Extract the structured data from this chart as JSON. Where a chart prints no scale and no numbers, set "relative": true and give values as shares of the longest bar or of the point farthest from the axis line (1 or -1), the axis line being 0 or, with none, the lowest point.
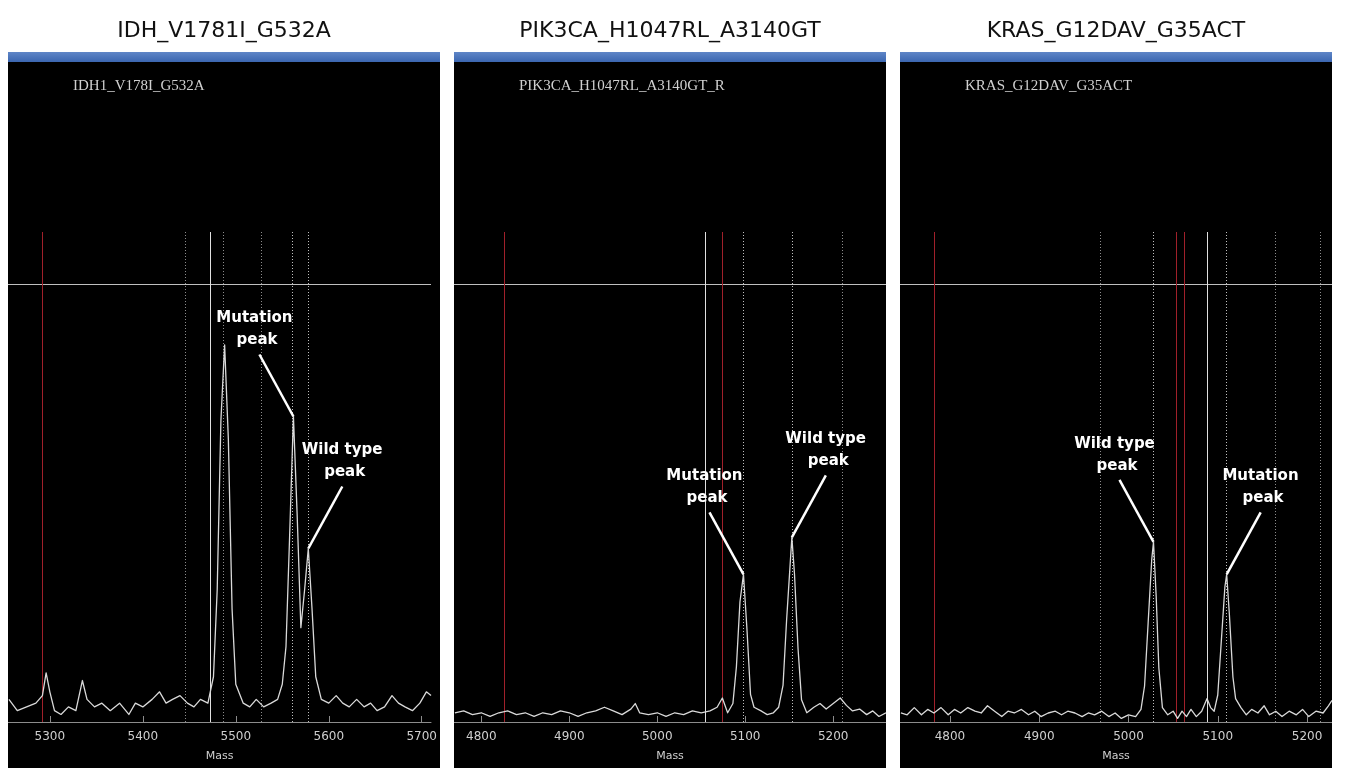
{
  "chart_data": [
    {
      "type": "line",
      "title": "IDH_V1781I_G532A",
      "subtitle": "IDH1_V178I_G532A",
      "xlabel": "Mass",
      "relative": true,
      "marker": "none",
      "xlim": [
        5255,
        5710
      ],
      "xticks": [
        5300,
        5400,
        5500,
        5600,
        5700
      ],
      "series": [
        {
          "color": "#d9d9d9",
          "x": [
            5256,
            5265,
            5275,
            5285,
            5292,
            5296,
            5300,
            5305,
            5312,
            5320,
            5328,
            5335,
            5340,
            5348,
            5356,
            5365,
            5375,
            5385,
            5392,
            5400,
            5410,
            5418,
            5425,
            5432,
            5440,
            5448,
            5455,
            5462,
            5470,
            5476,
            5480,
            5484,
            5488,
            5492,
            5496,
            5500,
            5508,
            5515,
            5522,
            5530,
            5538,
            5545,
            5550,
            5554,
            5558,
            5562,
            5566,
            5570,
            5574,
            5578,
            5582,
            5586,
            5592,
            5600,
            5608,
            5615,
            5622,
            5630,
            5638,
            5645,
            5652,
            5660,
            5668,
            5675,
            5682,
            5690,
            5698,
            5705,
            5710
          ],
          "values": [
            0.06,
            0.03,
            0.04,
            0.05,
            0.07,
            0.13,
            0.08,
            0.03,
            0.02,
            0.04,
            0.03,
            0.11,
            0.06,
            0.04,
            0.05,
            0.03,
            0.05,
            0.02,
            0.05,
            0.04,
            0.06,
            0.08,
            0.05,
            0.06,
            0.07,
            0.05,
            0.04,
            0.06,
            0.05,
            0.12,
            0.35,
            0.8,
            1,
            0.75,
            0.3,
            0.1,
            0.05,
            0.04,
            0.06,
            0.04,
            0.05,
            0.06,
            0.1,
            0.2,
            0.5,
            0.81,
            0.55,
            0.25,
            0.35,
            0.46,
            0.3,
            0.12,
            0.06,
            0.05,
            0.07,
            0.05,
            0.04,
            0.06,
            0.04,
            0.05,
            0.03,
            0.04,
            0.07,
            0.05,
            0.04,
            0.03,
            0.05,
            0.08,
            0.07
          ]
        }
      ],
      "ref_lines": [
        {
          "axis": "y",
          "value": 1.16,
          "color": "#bfbfbf",
          "line_style": "solid"
        },
        {
          "axis": "x",
          "value": 5292,
          "color": "#a0202a",
          "line_style": "solid"
        },
        {
          "axis": "x",
          "value": 5446,
          "color": "#8c8c8c",
          "line_style": "dotted"
        },
        {
          "axis": "x",
          "value": 5472,
          "color": "#e0e0e0",
          "line_style": "solid"
        },
        {
          "axis": "x",
          "value": 5486,
          "color": "#8c8c8c",
          "line_style": "dotted"
        },
        {
          "axis": "x",
          "value": 5527,
          "color": "#8c8c8c",
          "line_style": "dotted"
        },
        {
          "axis": "x",
          "value": 5561,
          "color": "#bfbfbf",
          "line_style": "dotted"
        },
        {
          "axis": "x",
          "value": 5578,
          "color": "#bfbfbf",
          "line_style": "dotted"
        }
      ],
      "annotations": [
        {
          "text": "Mutation peak",
          "x": 5562,
          "y": 0.81
        },
        {
          "text": "Wild type peak",
          "x": 5578,
          "y": 0.46
        }
      ]
    },
    {
      "type": "line",
      "title": "PIK3CA_H1047RL_A3140GT",
      "subtitle": "PIK3CA_H1047RL_A3140GT_R",
      "xlabel": "Mass",
      "relative": true,
      "marker": "none",
      "xlim": [
        4769,
        5260
      ],
      "xticks": [
        4800,
        4900,
        5000,
        5100,
        5200
      ],
      "series": [
        {
          "color": "#d9d9d9",
          "x": [
            4770,
            4780,
            4790,
            4800,
            4810,
            4820,
            4830,
            4840,
            4850,
            4860,
            4870,
            4880,
            4890,
            4900,
            4910,
            4920,
            4930,
            4940,
            4950,
            4960,
            4970,
            4975,
            4980,
            4990,
            5000,
            5010,
            5020,
            5030,
            5040,
            5050,
            5060,
            5068,
            5074,
            5080,
            5086,
            5090,
            5094,
            5098,
            5102,
            5106,
            5110,
            5118,
            5125,
            5132,
            5138,
            5143,
            5147,
            5151,
            5153,
            5156,
            5160,
            5164,
            5170,
            5178,
            5185,
            5192,
            5200,
            5208,
            5215,
            5222,
            5230,
            5238,
            5245,
            5252,
            5260
          ],
          "values": [
            0.05,
            0.06,
            0.04,
            0.05,
            0.03,
            0.05,
            0.06,
            0.04,
            0.05,
            0.03,
            0.05,
            0.04,
            0.06,
            0.05,
            0.03,
            0.05,
            0.06,
            0.08,
            0.06,
            0.04,
            0.07,
            0.1,
            0.05,
            0.04,
            0.05,
            0.03,
            0.05,
            0.04,
            0.06,
            0.05,
            0.06,
            0.08,
            0.13,
            0.05,
            0.1,
            0.3,
            0.65,
            0.8,
            0.5,
            0.15,
            0.08,
            0.06,
            0.04,
            0.05,
            0.08,
            0.2,
            0.55,
            0.85,
            1,
            0.8,
            0.4,
            0.12,
            0.05,
            0.08,
            0.1,
            0.07,
            0.1,
            0.13,
            0.09,
            0.06,
            0.07,
            0.04,
            0.06,
            0.03,
            0.05
          ]
        }
      ],
      "ref_lines": [
        {
          "axis": "y",
          "value": 2.37,
          "color": "#bfbfbf",
          "line_style": "solid"
        },
        {
          "axis": "x",
          "value": 4826,
          "color": "#a0202a",
          "line_style": "solid"
        },
        {
          "axis": "x",
          "value": 5054,
          "color": "#e0e0e0",
          "line_style": "solid"
        },
        {
          "axis": "x",
          "value": 5074,
          "color": "#a0202a",
          "line_style": "solid"
        },
        {
          "axis": "x",
          "value": 5098,
          "color": "#bfbfbf",
          "line_style": "dotted"
        },
        {
          "axis": "x",
          "value": 5153,
          "color": "#bfbfbf",
          "line_style": "dotted"
        },
        {
          "axis": "x",
          "value": 5210,
          "color": "#8c8c8c",
          "line_style": "dotted"
        }
      ],
      "annotations": [
        {
          "text": "Mutation peak",
          "x": 5098,
          "y": 0.8
        },
        {
          "text": "Wild type peak",
          "x": 5153,
          "y": 1
        }
      ]
    },
    {
      "type": "line",
      "title": "KRAS_G12DAV_G35ACT",
      "subtitle": "KRAS_G12DAV_G35ACT",
      "xlabel": "Mass",
      "relative": true,
      "marker": "none",
      "xlim": [
        4744,
        5228
      ],
      "xticks": [
        4800,
        4900,
        5000,
        5100,
        5200
      ],
      "series": [
        {
          "color": "#d9d9d9",
          "x": [
            4745,
            4752,
            4760,
            4768,
            4775,
            4782,
            4790,
            4798,
            4805,
            4812,
            4820,
            4828,
            4835,
            4842,
            4850,
            4858,
            4865,
            4872,
            4880,
            4888,
            4895,
            4902,
            4910,
            4918,
            4925,
            4932,
            4940,
            4948,
            4955,
            4962,
            4970,
            4978,
            4985,
            4992,
            5000,
            5008,
            5014,
            5018,
            5022,
            5026,
            5028,
            5031,
            5034,
            5038,
            5044,
            5050,
            5055,
            5060,
            5065,
            5070,
            5076,
            5082,
            5088,
            5092,
            5096,
            5100,
            5104,
            5108,
            5110,
            5113,
            5117,
            5120,
            5126,
            5132,
            5138,
            5145,
            5152,
            5158,
            5165,
            5172,
            5180,
            5188,
            5195,
            5202,
            5210,
            5218,
            5224,
            5228
          ],
          "values": [
            0.05,
            0.04,
            0.08,
            0.04,
            0.07,
            0.05,
            0.08,
            0.04,
            0.07,
            0.05,
            0.08,
            0.06,
            0.05,
            0.09,
            0.06,
            0.03,
            0.06,
            0.05,
            0.07,
            0.04,
            0.06,
            0.03,
            0.05,
            0.06,
            0.04,
            0.06,
            0.05,
            0.03,
            0.05,
            0.04,
            0.06,
            0.03,
            0.05,
            0.02,
            0.04,
            0.03,
            0.07,
            0.2,
            0.55,
            0.9,
            1,
            0.7,
            0.3,
            0.08,
            0.04,
            0.06,
            0.02,
            0.06,
            0.03,
            0.07,
            0.03,
            0.06,
            0.13,
            0.08,
            0.06,
            0.15,
            0.45,
            0.75,
            0.82,
            0.6,
            0.25,
            0.13,
            0.08,
            0.04,
            0.07,
            0.05,
            0.09,
            0.04,
            0.06,
            0.03,
            0.06,
            0.04,
            0.07,
            0.03,
            0.06,
            0.05,
            0.09,
            0.12
          ]
        }
      ],
      "ref_lines": [
        {
          "axis": "y",
          "value": 2.43,
          "color": "#bfbfbf",
          "line_style": "solid"
        },
        {
          "axis": "x",
          "value": 4782,
          "color": "#a0202a",
          "line_style": "solid"
        },
        {
          "axis": "x",
          "value": 4968,
          "color": "#8c8c8c",
          "line_style": "dotted"
        },
        {
          "axis": "x",
          "value": 5028,
          "color": "#bfbfbf",
          "line_style": "dotted"
        },
        {
          "axis": "x",
          "value": 5053,
          "color": "#a0202a",
          "line_style": "solid"
        },
        {
          "axis": "x",
          "value": 5063,
          "color": "#a0202a",
          "line_style": "solid"
        },
        {
          "axis": "x",
          "value": 5088,
          "color": "#e0e0e0",
          "line_style": "solid"
        },
        {
          "axis": "x",
          "value": 5110,
          "color": "#bfbfbf",
          "line_style": "dotted"
        },
        {
          "axis": "x",
          "value": 5164,
          "color": "#8c8c8c",
          "line_style": "dotted"
        },
        {
          "axis": "x",
          "value": 5215,
          "color": "#8c8c8c",
          "line_style": "dotted"
        }
      ],
      "annotations": [
        {
          "text": "Wild type peak",
          "x": 5028,
          "y": 1
        },
        {
          "text": "Mutation peak",
          "x": 5110,
          "y": 0.82
        }
      ]
    }
  ]
}
